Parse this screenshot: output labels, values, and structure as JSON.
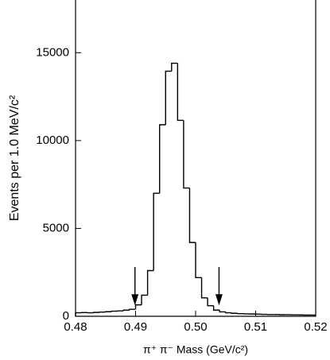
{
  "chart_data": {
    "type": "histogram",
    "xlabel": "π⁺ π⁻ Mass (GeV/c²)",
    "ylabel": "Events per 1.0 MeV/c²",
    "bins": [
      0.48,
      0.481,
      0.482,
      0.483,
      0.484,
      0.485,
      0.486,
      0.487,
      0.488,
      0.489,
      0.49,
      0.491,
      0.492,
      0.493,
      0.494,
      0.495,
      0.496,
      0.497,
      0.498,
      0.499,
      0.5,
      0.501,
      0.502,
      0.503,
      0.504,
      0.505,
      0.506,
      0.507,
      0.508,
      0.509,
      0.51,
      0.511,
      0.512,
      0.513,
      0.514,
      0.515,
      0.516,
      0.517,
      0.518,
      0.519,
      0.52
    ],
    "values": [
      200,
      210,
      200,
      220,
      240,
      260,
      290,
      310,
      350,
      400,
      650,
      1200,
      2600,
      7000,
      10900,
      13950,
      14400,
      11150,
      7300,
      4200,
      2200,
      1050,
      600,
      350,
      250,
      200,
      170,
      150,
      140,
      130,
      120,
      110,
      100,
      100,
      90,
      90,
      80,
      80,
      70,
      70
    ],
    "color": "#000000",
    "arrows": [
      0.4899,
      0.5039
    ],
    "xlim": [
      0.48,
      0.52
    ],
    "xticks": [
      0.48,
      0.49,
      {
        "value": 0.5,
        "label": "0.50"
      },
      0.51,
      0.52
    ],
    "ylim": [
      0,
      18000
    ],
    "yticks": [
      0,
      5000,
      10000,
      15000
    ]
  }
}
